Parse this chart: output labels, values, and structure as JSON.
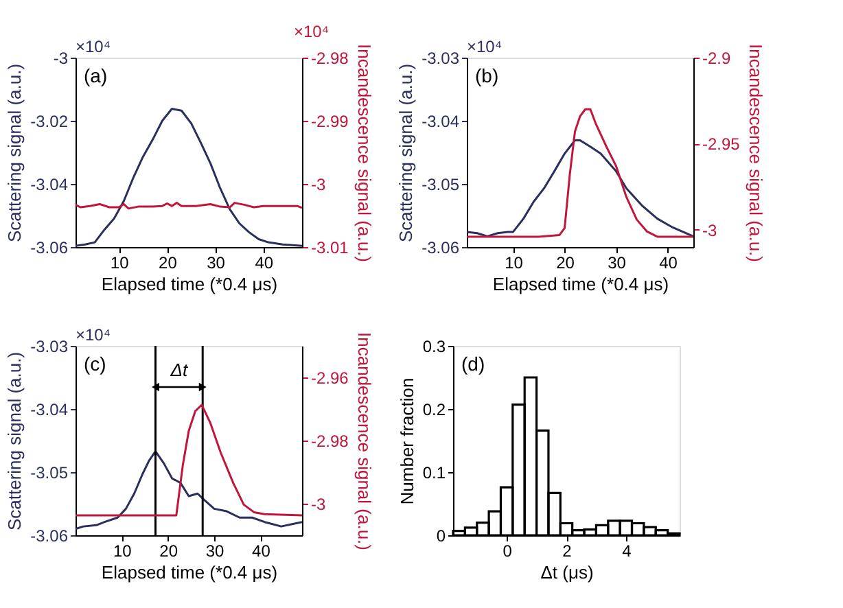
{
  "chart_data": [
    {
      "type": "line",
      "xlabel": "Elapsed time (*0.4 μs)",
      "ylabel": "Scattering signal (a.u.)",
      "y2label": "Incandescence signal (a.u.)",
      "xlim": [
        1,
        48
      ],
      "xticks": [
        10,
        20,
        30,
        40
      ],
      "ylim": [
        -3.06,
        -3.0
      ],
      "yticks": [
        -3.06,
        -3.04,
        -3.02,
        -3
      ],
      "y2lim": [
        -3.01,
        -2.98
      ],
      "y2ticks": [
        -3.01,
        -3,
        -2.99,
        -2.98
      ],
      "annotations": [
        "(a)",
        "×10⁴",
        "×10⁴"
      ],
      "series": [
        {
          "color": "#2b2f5c",
          "x": [
            1,
            3,
            5,
            7,
            9,
            11,
            13,
            15,
            17,
            19,
            21,
            23,
            25,
            27,
            29,
            31,
            33,
            35,
            37,
            39,
            41,
            44,
            48
          ],
          "values": [
            -3.0596,
            -3.0592,
            -3.0585,
            -3.0545,
            -3.051,
            -3.0455,
            -3.038,
            -3.0314,
            -3.026,
            -3.02,
            -3.0162,
            -3.0168,
            -3.0208,
            -3.027,
            -3.0335,
            -3.0413,
            -3.048,
            -3.0525,
            -3.0553,
            -3.0575,
            -3.0585,
            -3.0592,
            -3.0596
          ]
        },
        {
          "color": "#c0163c",
          "axis": "y2",
          "x": [
            1,
            2,
            4,
            6,
            8,
            10,
            11,
            12,
            14,
            17,
            19,
            20,
            21,
            22,
            23,
            26,
            29,
            31,
            33,
            34,
            36,
            38,
            40,
            47,
            48
          ],
          "values": [
            -3.0033,
            -3.0037,
            -3.0035,
            -3.0032,
            -3.0037,
            -3.0037,
            -3.0032,
            -3.0039,
            -3.0036,
            -3.0036,
            -3.0035,
            -3.0031,
            -3.0035,
            -3.003,
            -3.0035,
            -3.0035,
            -3.0032,
            -3.0036,
            -3.0037,
            -3.003,
            -3.0033,
            -3.0037,
            -3.0035,
            -3.0035,
            -3.0038
          ]
        }
      ]
    },
    {
      "type": "line",
      "xlabel": "Elapsed time (*0.4 μs)",
      "ylabel": "Scattering signal (a.u.)",
      "y2label": "Incandescence signal (a.u.)",
      "xlim": [
        1,
        45
      ],
      "xticks": [
        10,
        20,
        30,
        40
      ],
      "ylim": [
        -3.06,
        -3.03
      ],
      "yticks": [
        -3.06,
        -3.05,
        -3.04,
        -3.03
      ],
      "y2lim": [
        -3.01,
        -2.9
      ],
      "y2ticks": [
        -3,
        -2.95,
        -2.9
      ],
      "annotations": [
        "(b)",
        "×10⁴"
      ],
      "series": [
        {
          "color": "#2b2f5c",
          "x": [
            1,
            3,
            5,
            7,
            9,
            10,
            12,
            14,
            16,
            18,
            20,
            22,
            23,
            25,
            27,
            30,
            32,
            35,
            38,
            41,
            43,
            45
          ],
          "values": [
            -3.0576,
            -3.0578,
            -3.0583,
            -3.0578,
            -3.0576,
            -3.0576,
            -3.0555,
            -3.0528,
            -3.0507,
            -3.048,
            -3.0452,
            -3.0431,
            -3.0431,
            -3.0441,
            -3.0452,
            -3.048,
            -3.0507,
            -3.0534,
            -3.0555,
            -3.0569,
            -3.0576,
            -3.0583
          ]
        },
        {
          "color": "#c0163c",
          "axis": "y2",
          "x": [
            1,
            5,
            10,
            15,
            19,
            20,
            21,
            22,
            23,
            24,
            25,
            26,
            28,
            30,
            32,
            34,
            36,
            38,
            45
          ],
          "values": [
            -3.004,
            -3.004,
            -3.004,
            -3.004,
            -3.003,
            -2.999,
            -2.968,
            -2.943,
            -2.934,
            -2.93,
            -2.93,
            -2.938,
            -2.951,
            -2.963,
            -2.981,
            -2.994,
            -3.001,
            -3.004,
            -3.004
          ]
        }
      ]
    },
    {
      "type": "line",
      "xlabel": "Elapsed time (*0.4 μs)",
      "ylabel": "Scattering signal (a.u.)",
      "y2label": "Incandescence signal (a.u.)",
      "xlim": [
        0,
        49
      ],
      "xticks": [
        10,
        20,
        30,
        40
      ],
      "ylim": [
        -3.06,
        -3.03
      ],
      "yticks": [
        -3.06,
        -3.05,
        -3.04,
        -3.03
      ],
      "y2lim": [
        -3.01,
        -2.95
      ],
      "y2ticks": [
        -3,
        -2.98,
        -2.96
      ],
      "annotations": [
        "(c)",
        "×10⁴",
        "Δt"
      ],
      "ref_lines": [
        {
          "axis": "x",
          "value": 17.3,
          "color": "#000000"
        },
        {
          "axis": "x",
          "value": 27.5,
          "color": "#000000"
        }
      ],
      "series": [
        {
          "color": "#2b2f5c",
          "x": [
            0,
            1.7,
            4.5,
            6.3,
            9.1,
            10.9,
            12.7,
            14.5,
            15.9,
            17.3,
            19.1,
            20.9,
            22.7,
            24.5,
            26.4,
            27.7,
            30,
            32.7,
            35.5,
            38.2,
            40.9,
            44.5,
            49
          ],
          "values": [
            -3.059,
            -3.0586,
            -3.0584,
            -3.0579,
            -3.0572,
            -3.0558,
            -3.0534,
            -3.0503,
            -3.0482,
            -3.0467,
            -3.0486,
            -3.051,
            -3.0517,
            -3.0538,
            -3.0534,
            -3.0543,
            -3.0558,
            -3.0562,
            -3.0572,
            -3.0572,
            -3.0579,
            -3.0586,
            -3.0579
          ]
        },
        {
          "color": "#c0163c",
          "axis": "y2",
          "x": [
            0,
            5,
            10,
            15,
            21.8,
            23.2,
            24.5,
            25.9,
            27.3,
            29.1,
            31.4,
            34.1,
            36.4,
            38.6,
            40.9,
            49
          ],
          "values": [
            -3.0037,
            -3.0037,
            -3.0037,
            -3.0037,
            -3.0037,
            -2.9879,
            -2.9769,
            -2.9707,
            -2.9687,
            -2.9742,
            -2.9838,
            -2.9934,
            -3.0003,
            -3.0027,
            -3.0033,
            -3.0037
          ]
        }
      ]
    },
    {
      "type": "histogram",
      "xlabel": "Δt (μs)",
      "ylabel": "Number fraction",
      "xlim": [
        -1.8,
        5.8
      ],
      "xticks": [
        0,
        2,
        4
      ],
      "ylim": [
        0,
        0.3
      ],
      "yticks": [
        0,
        0.1,
        0.2,
        0.3
      ],
      "annotations": [
        "(d)"
      ],
      "color": "#000000",
      "bins": [
        -1.8,
        -1.4,
        -1.0,
        -0.6,
        -0.2,
        0.2,
        0.6,
        1.0,
        1.4,
        1.8,
        2.2,
        2.6,
        3.0,
        3.4,
        3.8,
        4.2,
        4.6,
        5.0,
        5.4,
        5.8
      ],
      "values": [
        0.007,
        0.012,
        0.02,
        0.038,
        0.076,
        0.207,
        0.25,
        0.166,
        0.067,
        0.019,
        0.008,
        0.009,
        0.016,
        0.023,
        0.023,
        0.019,
        0.013,
        0.008,
        0.003
      ]
    }
  ]
}
